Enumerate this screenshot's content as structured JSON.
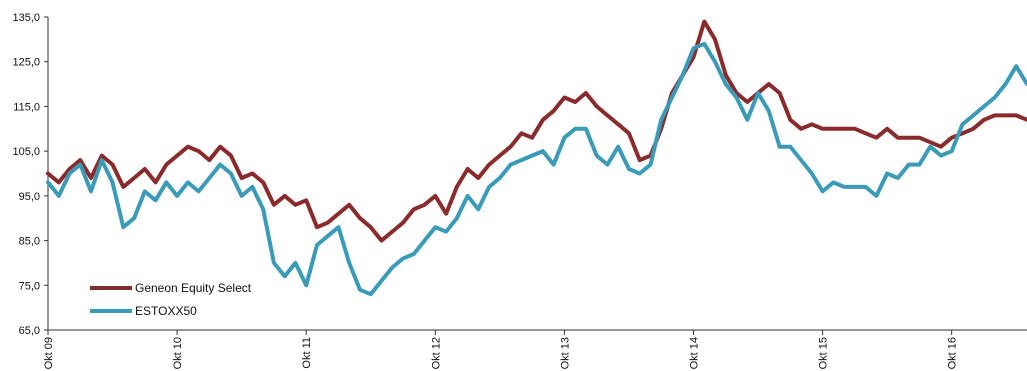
{
  "chart_data": {
    "type": "line",
    "title": "",
    "xlabel": "",
    "ylabel": "",
    "ylim": [
      65,
      135
    ],
    "yticks": [
      "135,0",
      "125,0",
      "115,0",
      "105,0",
      "95,0",
      "85,0",
      "75,0",
      "65,0"
    ],
    "ytick_values": [
      135,
      125,
      115,
      105,
      95,
      85,
      75,
      65
    ],
    "xticks": [
      "Okt 09",
      "Okt 10",
      "Okt 11",
      "Okt 12",
      "Okt 13",
      "Okt 14",
      "Okt 15",
      "Okt 16"
    ],
    "xtick_values": [
      "2009-10",
      "2010-10",
      "2011-10",
      "2012-10",
      "2013-10",
      "2014-10",
      "2015-10",
      "2016-10"
    ],
    "xlim": [
      "2009-10",
      "2017-05"
    ],
    "grid": false,
    "legend_position": "bottom-left",
    "x": [
      "2009-10",
      "2009-11",
      "2009-12",
      "2010-01",
      "2010-02",
      "2010-03",
      "2010-04",
      "2010-05",
      "2010-06",
      "2010-07",
      "2010-08",
      "2010-09",
      "2010-10",
      "2010-11",
      "2010-12",
      "2011-01",
      "2011-02",
      "2011-03",
      "2011-04",
      "2011-05",
      "2011-06",
      "2011-07",
      "2011-08",
      "2011-09",
      "2011-10",
      "2011-11",
      "2011-12",
      "2012-01",
      "2012-02",
      "2012-03",
      "2012-04",
      "2012-05",
      "2012-06",
      "2012-07",
      "2012-08",
      "2012-09",
      "2012-10",
      "2012-11",
      "2012-12",
      "2013-01",
      "2013-02",
      "2013-03",
      "2013-04",
      "2013-05",
      "2013-06",
      "2013-07",
      "2013-08",
      "2013-09",
      "2013-10",
      "2013-11",
      "2013-12",
      "2014-01",
      "2014-02",
      "2014-03",
      "2014-04",
      "2014-05",
      "2014-06",
      "2014-07",
      "2014-08",
      "2014-09",
      "2014-10",
      "2014-11",
      "2014-12",
      "2015-01",
      "2015-02",
      "2015-03",
      "2015-04",
      "2015-05",
      "2015-06",
      "2015-07",
      "2015-08",
      "2015-09",
      "2015-10",
      "2015-11",
      "2015-12",
      "2016-01",
      "2016-02",
      "2016-03",
      "2016-04",
      "2016-05",
      "2016-06",
      "2016-07",
      "2016-08",
      "2016-09",
      "2016-10",
      "2016-11",
      "2016-12",
      "2017-01",
      "2017-02",
      "2017-03",
      "2017-04",
      "2017-05"
    ],
    "series": [
      {
        "name": "Geneon Equity Select",
        "color": "#8b2a2a",
        "values": [
          100,
          98,
          101,
          103,
          99,
          104,
          102,
          97,
          99,
          101,
          98,
          102,
          104,
          106,
          105,
          103,
          106,
          104,
          99,
          100,
          98,
          93,
          95,
          93,
          94,
          88,
          89,
          91,
          93,
          90,
          88,
          85,
          87,
          89,
          92,
          93,
          95,
          91,
          97,
          101,
          99,
          102,
          104,
          106,
          109,
          108,
          112,
          114,
          117,
          116,
          118,
          115,
          113,
          111,
          109,
          103,
          104,
          110,
          118,
          122,
          126,
          134,
          130,
          122,
          118,
          116,
          118,
          120,
          118,
          112,
          110,
          111,
          110,
          110,
          110,
          110,
          109,
          108,
          110,
          108,
          108,
          108,
          107,
          106,
          108,
          109,
          110,
          112,
          113,
          113,
          113,
          112
        ]
      },
      {
        "name": "ESTOXX50",
        "color": "#3a9bb8",
        "values": [
          98,
          95,
          100,
          102,
          96,
          103,
          98,
          88,
          90,
          96,
          94,
          98,
          95,
          98,
          96,
          99,
          102,
          100,
          95,
          97,
          92,
          80,
          77,
          80,
          75,
          84,
          86,
          88,
          80,
          74,
          73,
          76,
          79,
          81,
          82,
          85,
          88,
          87,
          90,
          95,
          92,
          97,
          99,
          102,
          103,
          104,
          105,
          102,
          108,
          110,
          110,
          104,
          102,
          106,
          101,
          100,
          102,
          112,
          117,
          122,
          128,
          129,
          125,
          120,
          117,
          112,
          118,
          114,
          106,
          106,
          103,
          100,
          96,
          98,
          97,
          97,
          97,
          95,
          100,
          99,
          102,
          102,
          106,
          104,
          105,
          111,
          113,
          115,
          117,
          120,
          124,
          120
        ]
      }
    ]
  }
}
